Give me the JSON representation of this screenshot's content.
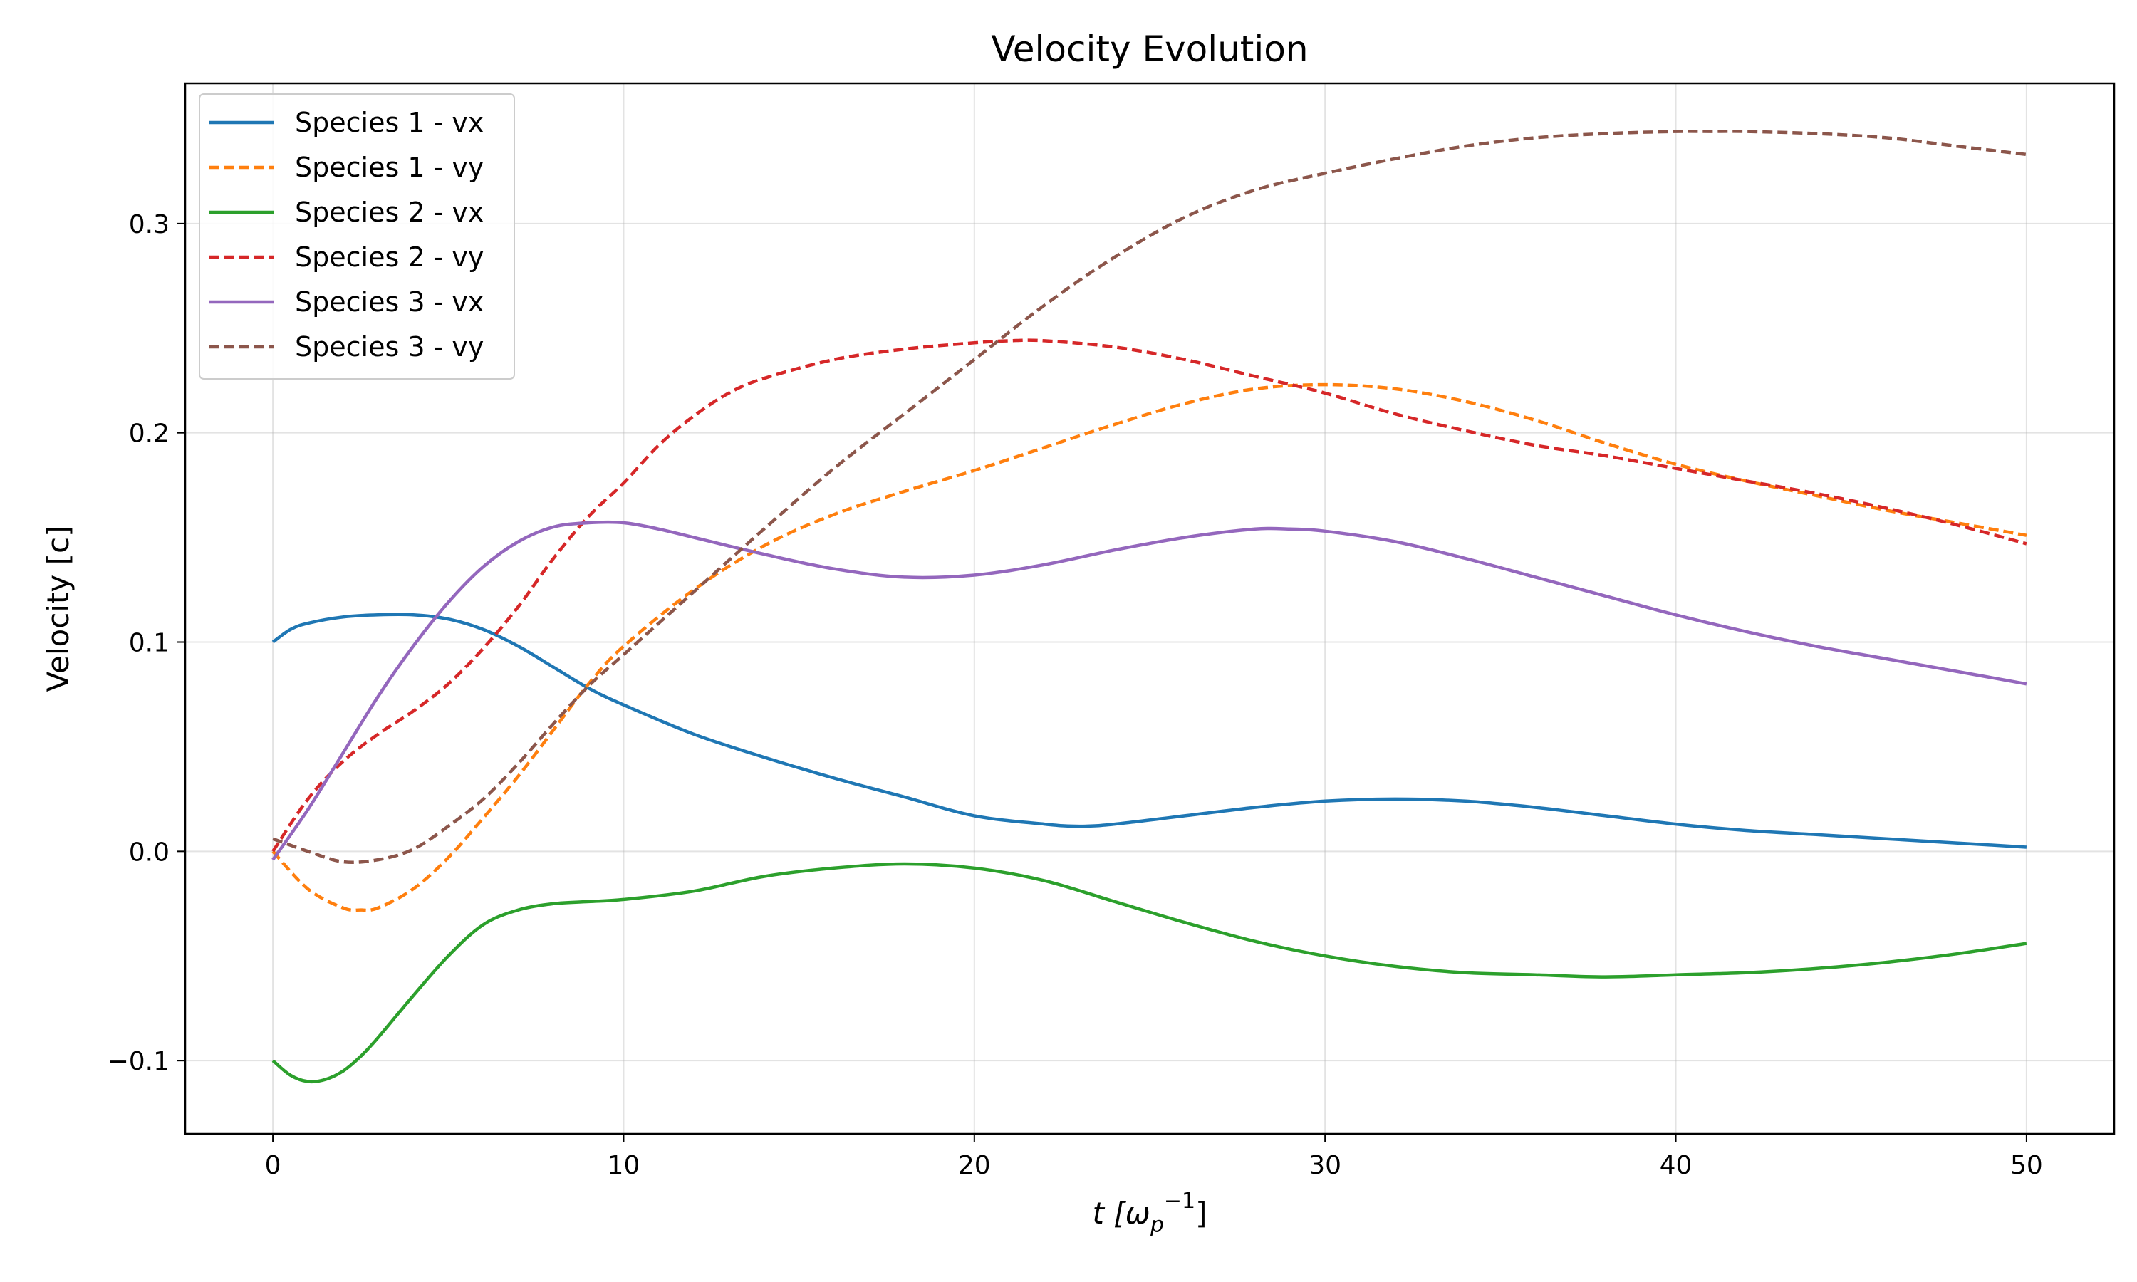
{
  "chart_data": {
    "type": "line",
    "title": "Velocity Evolution",
    "xlabel": {
      "base": "t [ω",
      "sub": "p",
      "sup": "−1",
      "end": "]"
    },
    "ylabel": "Velocity [c]",
    "xlim": [
      -2.5,
      52.5
    ],
    "ylim": [
      -0.135,
      0.367
    ],
    "xticks": [
      0,
      10,
      20,
      30,
      40,
      50
    ],
    "xtick_labels": [
      "0",
      "10",
      "20",
      "30",
      "40",
      "50"
    ],
    "yticks": [
      -0.1,
      0.0,
      0.1,
      0.2,
      0.3
    ],
    "ytick_labels": [
      "−0.1",
      "0.0",
      "0.1",
      "0.2",
      "0.3"
    ],
    "grid": true,
    "legend_position": "top-left",
    "series": [
      {
        "name": "Species 1 - vx",
        "color": "#1f77b4",
        "dash": "solid",
        "x": [
          0,
          0.5,
          1,
          2,
          3,
          4,
          5,
          6,
          7,
          8,
          9,
          10,
          12,
          14,
          16,
          18,
          20,
          22,
          23,
          24,
          26,
          28,
          30,
          32,
          34,
          36,
          38,
          40,
          42,
          44,
          46,
          48,
          50
        ],
        "y": [
          0.1,
          0.106,
          0.109,
          0.112,
          0.113,
          0.113,
          0.111,
          0.106,
          0.098,
          0.088,
          0.078,
          0.07,
          0.056,
          0.045,
          0.035,
          0.026,
          0.017,
          0.013,
          0.012,
          0.013,
          0.017,
          0.021,
          0.024,
          0.025,
          0.024,
          0.021,
          0.017,
          0.013,
          0.01,
          0.008,
          0.006,
          0.004,
          0.002
        ]
      },
      {
        "name": "Species 1 - vy",
        "color": "#ff7f0e",
        "dash": "dashed",
        "x": [
          0,
          1,
          2,
          2.5,
          3,
          4,
          5,
          6,
          7,
          8,
          9,
          10,
          12,
          14,
          16,
          18,
          20,
          22,
          24,
          26,
          28,
          30,
          32,
          34,
          36,
          38,
          40,
          42,
          44,
          46,
          48,
          50
        ],
        "y": [
          0.0,
          -0.018,
          -0.027,
          -0.028,
          -0.027,
          -0.018,
          -0.003,
          0.016,
          0.036,
          0.058,
          0.08,
          0.098,
          0.125,
          0.146,
          0.161,
          0.172,
          0.182,
          0.193,
          0.204,
          0.214,
          0.221,
          0.223,
          0.221,
          0.215,
          0.206,
          0.195,
          0.185,
          0.177,
          0.17,
          0.163,
          0.157,
          0.151
        ]
      },
      {
        "name": "Species 2 - vx",
        "color": "#2ca02c",
        "dash": "solid",
        "x": [
          0,
          0.5,
          1,
          1.5,
          2,
          2.5,
          3,
          4,
          5,
          6,
          7,
          8,
          9,
          10,
          12,
          14,
          16,
          18,
          20,
          22,
          24,
          26,
          28,
          30,
          32,
          34,
          36,
          38,
          40,
          42,
          44,
          46,
          48,
          50
        ],
        "y": [
          -0.1,
          -0.107,
          -0.11,
          -0.109,
          -0.105,
          -0.098,
          -0.089,
          -0.069,
          -0.05,
          -0.035,
          -0.028,
          -0.025,
          -0.024,
          -0.023,
          -0.019,
          -0.012,
          -0.008,
          -0.006,
          -0.008,
          -0.014,
          -0.024,
          -0.034,
          -0.043,
          -0.05,
          -0.055,
          -0.058,
          -0.059,
          -0.06,
          -0.059,
          -0.058,
          -0.056,
          -0.053,
          -0.049,
          -0.044
        ]
      },
      {
        "name": "Species 2 - vy",
        "color": "#d62728",
        "dash": "dashed",
        "x": [
          0,
          1,
          2,
          3,
          4,
          5,
          6,
          7,
          8,
          9,
          10,
          11,
          12,
          13,
          14,
          16,
          18,
          20,
          21,
          22,
          24,
          26,
          28,
          30,
          32,
          34,
          36,
          38,
          40,
          42,
          44,
          46,
          48,
          50
        ],
        "y": [
          0.0,
          0.025,
          0.043,
          0.056,
          0.067,
          0.08,
          0.097,
          0.117,
          0.14,
          0.16,
          0.176,
          0.194,
          0.208,
          0.219,
          0.226,
          0.235,
          0.24,
          0.243,
          0.244,
          0.244,
          0.241,
          0.235,
          0.227,
          0.219,
          0.209,
          0.201,
          0.194,
          0.189,
          0.183,
          0.177,
          0.171,
          0.164,
          0.156,
          0.147
        ]
      },
      {
        "name": "Species 3 - vx",
        "color": "#9467bd",
        "dash": "solid",
        "x": [
          0,
          1,
          2,
          3,
          4,
          5,
          6,
          7,
          8,
          9,
          10,
          11,
          12,
          14,
          16,
          18,
          20,
          22,
          24,
          26,
          28,
          29,
          30,
          32,
          34,
          36,
          38,
          40,
          42,
          44,
          46,
          48,
          50
        ],
        "y": [
          -0.004,
          0.02,
          0.047,
          0.074,
          0.098,
          0.119,
          0.136,
          0.148,
          0.155,
          0.157,
          0.157,
          0.154,
          0.15,
          0.142,
          0.135,
          0.131,
          0.132,
          0.137,
          0.144,
          0.15,
          0.154,
          0.154,
          0.153,
          0.148,
          0.14,
          0.131,
          0.122,
          0.113,
          0.105,
          0.098,
          0.092,
          0.086,
          0.08
        ]
      },
      {
        "name": "Species 3 - vy",
        "color": "#8c564b",
        "dash": "dashed",
        "x": [
          0,
          1,
          2,
          3,
          4,
          5,
          6,
          7,
          8,
          9,
          10,
          12,
          14,
          16,
          18,
          20,
          22,
          24,
          26,
          28,
          30,
          32,
          34,
          36,
          38,
          40,
          41,
          42,
          44,
          46,
          48,
          50
        ],
        "y": [
          0.006,
          0.0,
          -0.005,
          -0.004,
          0.001,
          0.012,
          0.025,
          0.042,
          0.061,
          0.079,
          0.094,
          0.124,
          0.154,
          0.183,
          0.209,
          0.235,
          0.261,
          0.284,
          0.303,
          0.316,
          0.324,
          0.331,
          0.337,
          0.341,
          0.343,
          0.344,
          0.344,
          0.344,
          0.343,
          0.341,
          0.337,
          0.333
        ]
      }
    ]
  }
}
